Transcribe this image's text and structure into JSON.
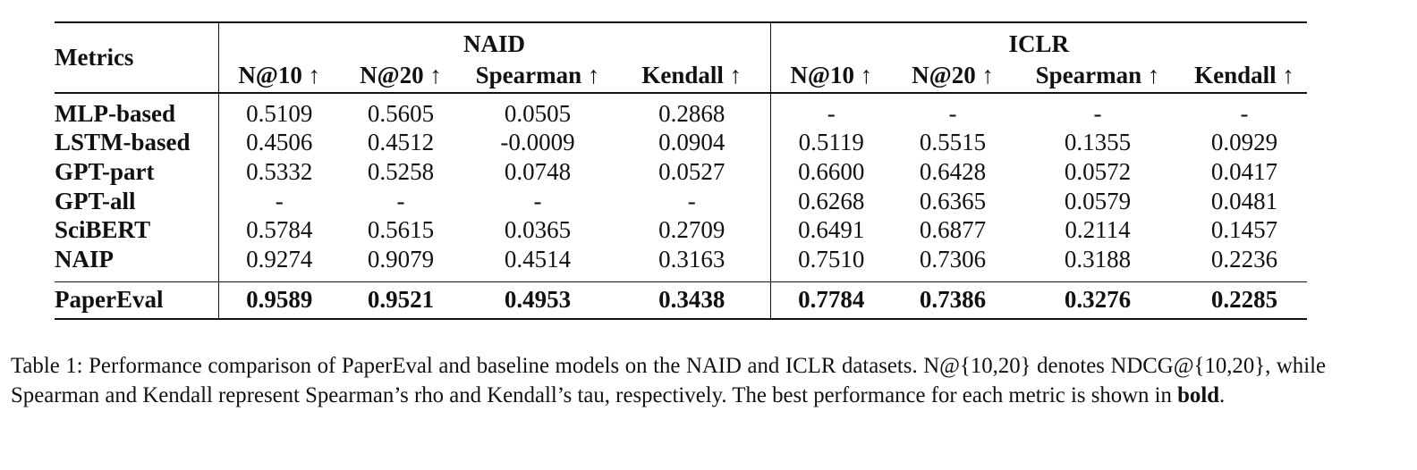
{
  "table": {
    "row_header": "Metrics",
    "groups": [
      {
        "name": "NAID",
        "columns": [
          "N@10 ↑",
          "N@20 ↑",
          "Spearman ↑",
          "Kendall ↑"
        ]
      },
      {
        "name": "ICLR",
        "columns": [
          "N@10 ↑",
          "N@20 ↑",
          "Spearman ↑",
          "Kendall ↑"
        ]
      }
    ],
    "rows": [
      {
        "label": "MLP-based",
        "values": [
          "0.5109",
          "0.5605",
          "0.0505",
          "0.2868",
          "-",
          "-",
          "-",
          "-"
        ]
      },
      {
        "label": "LSTM-based",
        "values": [
          "0.4506",
          "0.4512",
          "-0.0009",
          "0.0904",
          "0.5119",
          "0.5515",
          "0.1355",
          "0.0929"
        ]
      },
      {
        "label": "GPT-part",
        "values": [
          "0.5332",
          "0.5258",
          "0.0748",
          "0.0527",
          "0.6600",
          "0.6428",
          "0.0572",
          "0.0417"
        ]
      },
      {
        "label": "GPT-all",
        "values": [
          "-",
          "-",
          "-",
          "-",
          "0.6268",
          "0.6365",
          "0.0579",
          "0.0481"
        ]
      },
      {
        "label": "SciBERT",
        "values": [
          "0.5784",
          "0.5615",
          "0.0365",
          "0.2709",
          "0.6491",
          "0.6877",
          "0.2114",
          "0.1457"
        ]
      },
      {
        "label": "NAIP",
        "values": [
          "0.9274",
          "0.9079",
          "0.4514",
          "0.3163",
          "0.7510",
          "0.7306",
          "0.3188",
          "0.2236"
        ]
      }
    ],
    "best_row": {
      "label": "PaperEval",
      "values": [
        "0.9589",
        "0.9521",
        "0.4953",
        "0.3438",
        "0.7784",
        "0.7386",
        "0.3276",
        "0.2285"
      ]
    }
  },
  "caption": {
    "part1": "Table 1: Performance comparison of PaperEval and baseline models on the NAID and ICLR datasets. N@{10,20} denotes NDCG@{10,20}, while Spearman and Kendall represent Spearman’s rho and Kendall’s tau, respectively. The best performance for each metric is shown in ",
    "bold_word": "bold",
    "part2": "."
  }
}
